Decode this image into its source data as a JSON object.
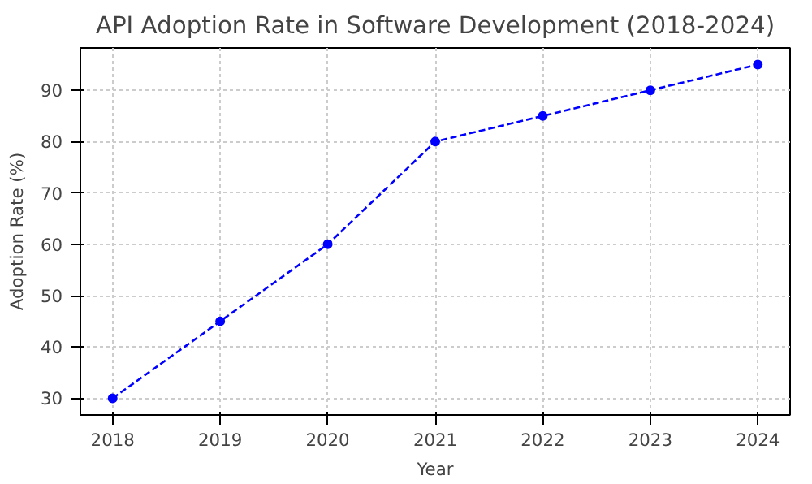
{
  "chart_data": {
    "type": "line",
    "title": "API Adoption Rate in Software Development (2018-2024)",
    "xlabel": "Year",
    "ylabel": "Adoption Rate (%)",
    "x": [
      2018,
      2019,
      2020,
      2021,
      2022,
      2023,
      2024
    ],
    "series": [
      {
        "color": "#0000ff",
        "values": [
          30,
          45,
          60,
          80,
          85,
          90,
          95
        ]
      }
    ],
    "xlim": [
      2017.7,
      2024.3
    ],
    "ylim": [
      26.75,
      98.25
    ],
    "xticks": [
      2018,
      2019,
      2020,
      2021,
      2022,
      2023,
      2024
    ],
    "yticks": [
      30,
      40,
      50,
      60,
      70,
      80,
      90
    ],
    "grid": true,
    "marker": "circle",
    "line_style": "dashed"
  }
}
